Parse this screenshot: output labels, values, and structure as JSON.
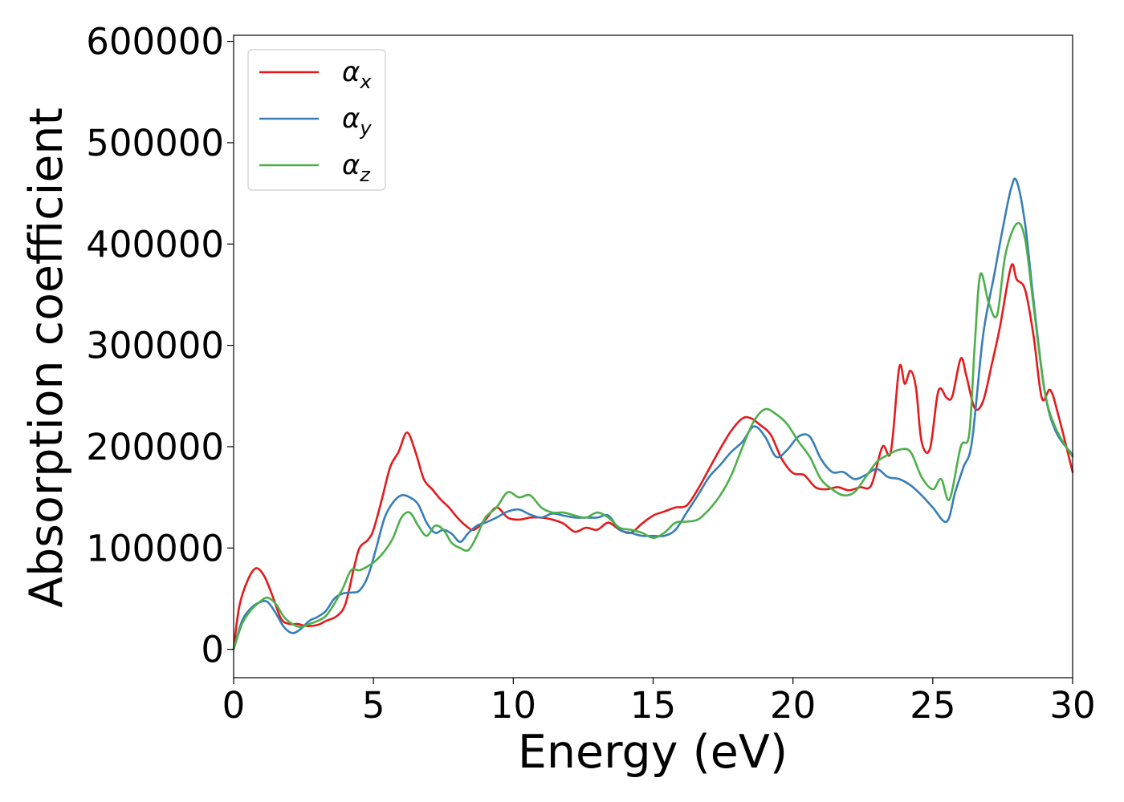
{
  "chart_data": {
    "type": "line",
    "title": "",
    "xlabel": "Energy (eV)",
    "ylabel": "Absorption coefficient",
    "xlim": [
      0,
      30
    ],
    "ylim": [
      -28000,
      606000
    ],
    "xticks": [
      0,
      5,
      10,
      15,
      20,
      25,
      30
    ],
    "yticks": [
      0,
      100000,
      200000,
      300000,
      400000,
      500000,
      600000
    ],
    "grid": false,
    "legend": "upper left",
    "colors": {
      "x": "#e41a1c",
      "y": "#377eb8",
      "z": "#4daf4a"
    },
    "series": [
      {
        "name": "αx",
        "symbol": "α",
        "subscript": "x",
        "color": "#e41a1c",
        "x": [
          0,
          0.2,
          0.5,
          0.8,
          1.1,
          1.4,
          1.7,
          2.0,
          2.3,
          2.6,
          3.0,
          3.3,
          3.7,
          4.0,
          4.3,
          4.5,
          4.8,
          5.0,
          5.3,
          5.6,
          5.9,
          6.2,
          6.5,
          6.8,
          7.1,
          7.4,
          7.7,
          8.0,
          8.3,
          8.6,
          9.0,
          9.4,
          9.8,
          10.2,
          10.6,
          11.0,
          11.4,
          11.8,
          12.2,
          12.6,
          13.0,
          13.4,
          13.8,
          14.2,
          14.6,
          15.0,
          15.4,
          15.8,
          16.2,
          16.6,
          17.0,
          17.4,
          17.8,
          18.2,
          18.5,
          18.8,
          19.2,
          19.6,
          20.0,
          20.4,
          20.8,
          21.2,
          21.6,
          22.0,
          22.4,
          22.8,
          23.2,
          23.5,
          23.8,
          24.0,
          24.2,
          24.4,
          24.6,
          24.9,
          25.2,
          25.5,
          25.7,
          26.0,
          26.2,
          26.5,
          26.8,
          27.1,
          27.4,
          27.8,
          28.0,
          28.3,
          28.6,
          28.9,
          29.2,
          29.5,
          30.0
        ],
        "y": [
          0,
          42000,
          68000,
          80000,
          72000,
          52000,
          30000,
          25000,
          25000,
          23000,
          24000,
          28000,
          33000,
          45000,
          80000,
          100000,
          108000,
          118000,
          148000,
          180000,
          195000,
          214000,
          195000,
          168000,
          158000,
          148000,
          140000,
          130000,
          122000,
          118000,
          128000,
          140000,
          130000,
          128000,
          130000,
          130000,
          128000,
          124000,
          116000,
          120000,
          118000,
          125000,
          118000,
          115000,
          124000,
          132000,
          136000,
          140000,
          142000,
          158000,
          178000,
          198000,
          216000,
          228000,
          228000,
          222000,
          212000,
          188000,
          174000,
          172000,
          160000,
          158000,
          160000,
          157000,
          160000,
          162000,
          200000,
          195000,
          278000,
          262000,
          275000,
          258000,
          205000,
          198000,
          255000,
          248000,
          250000,
          287000,
          270000,
          238000,
          245000,
          280000,
          318000,
          378000,
          365000,
          355000,
          310000,
          248000,
          256000,
          230000,
          175000
        ]
      },
      {
        "name": "αy",
        "symbol": "α",
        "subscript": "y",
        "color": "#377eb8",
        "x": [
          0,
          0.3,
          0.6,
          0.9,
          1.2,
          1.5,
          1.8,
          2.1,
          2.4,
          2.7,
          3.0,
          3.3,
          3.6,
          3.9,
          4.2,
          4.5,
          4.8,
          5.1,
          5.4,
          5.7,
          6.0,
          6.3,
          6.6,
          6.9,
          7.2,
          7.5,
          7.8,
          8.1,
          8.4,
          8.7,
          9.0,
          9.4,
          9.8,
          10.2,
          10.6,
          11.0,
          11.4,
          11.8,
          12.2,
          12.6,
          13.0,
          13.4,
          13.8,
          14.2,
          14.6,
          15.0,
          15.4,
          15.8,
          16.2,
          16.6,
          17.0,
          17.4,
          17.8,
          18.2,
          18.6,
          19.0,
          19.4,
          19.8,
          20.2,
          20.6,
          21.0,
          21.4,
          21.8,
          22.2,
          22.6,
          23.0,
          23.4,
          23.8,
          24.2,
          24.6,
          25.0,
          25.5,
          25.8,
          26.1,
          26.4,
          26.8,
          27.2,
          27.5,
          27.8,
          28.0,
          28.3,
          28.6,
          29.0,
          29.4,
          30.0
        ],
        "y": [
          0,
          28000,
          40000,
          46000,
          47000,
          36000,
          22000,
          16000,
          20000,
          28000,
          32000,
          38000,
          50000,
          55000,
          56000,
          58000,
          72000,
          100000,
          130000,
          145000,
          152000,
          150000,
          143000,
          125000,
          115000,
          118000,
          114000,
          106000,
          115000,
          122000,
          125000,
          130000,
          136000,
          138000,
          133000,
          130000,
          134000,
          132000,
          130000,
          130000,
          130000,
          132000,
          118000,
          115000,
          112000,
          112000,
          112000,
          118000,
          135000,
          152000,
          170000,
          182000,
          195000,
          205000,
          220000,
          210000,
          190000,
          197000,
          210000,
          210000,
          188000,
          175000,
          175000,
          168000,
          172000,
          178000,
          170000,
          168000,
          162000,
          152000,
          140000,
          126000,
          155000,
          180000,
          205000,
          310000,
          370000,
          415000,
          455000,
          462000,
          420000,
          345000,
          255000,
          215000,
          192000
        ]
      },
      {
        "name": "αz",
        "symbol": "α",
        "subscript": "z",
        "color": "#4daf4a",
        "x": [
          0,
          0.3,
          0.6,
          0.9,
          1.2,
          1.5,
          1.8,
          2.1,
          2.4,
          2.7,
          3.0,
          3.3,
          3.6,
          3.9,
          4.2,
          4.5,
          4.8,
          5.1,
          5.4,
          5.7,
          6.0,
          6.3,
          6.6,
          6.9,
          7.2,
          7.5,
          7.8,
          8.1,
          8.4,
          8.7,
          9.0,
          9.4,
          9.8,
          10.2,
          10.6,
          11.0,
          11.4,
          11.8,
          12.2,
          12.6,
          13.0,
          13.4,
          13.8,
          14.2,
          14.6,
          15.0,
          15.4,
          15.8,
          16.2,
          16.6,
          17.0,
          17.4,
          17.8,
          18.2,
          18.6,
          19.0,
          19.4,
          19.8,
          20.2,
          20.6,
          21.0,
          21.4,
          21.8,
          22.2,
          22.6,
          23.0,
          23.4,
          23.8,
          24.2,
          24.6,
          25.0,
          25.3,
          25.6,
          26.0,
          26.3,
          26.5,
          26.7,
          27.0,
          27.3,
          27.6,
          28.0,
          28.3,
          28.6,
          29.0,
          29.4,
          30.0
        ],
        "y": [
          0,
          25000,
          38000,
          46000,
          51000,
          45000,
          32000,
          25000,
          22000,
          25000,
          28000,
          33000,
          45000,
          60000,
          78000,
          78000,
          82000,
          88000,
          97000,
          110000,
          130000,
          135000,
          122000,
          112000,
          122000,
          118000,
          105000,
          100000,
          98000,
          112000,
          130000,
          140000,
          155000,
          150000,
          152000,
          140000,
          135000,
          135000,
          132000,
          130000,
          135000,
          130000,
          120000,
          118000,
          115000,
          110000,
          115000,
          125000,
          126000,
          128000,
          138000,
          152000,
          172000,
          200000,
          225000,
          237000,
          232000,
          222000,
          205000,
          190000,
          168000,
          158000,
          152000,
          155000,
          170000,
          185000,
          192000,
          197000,
          195000,
          170000,
          158000,
          168000,
          148000,
          200000,
          212000,
          300000,
          370000,
          342000,
          330000,
          390000,
          420000,
          405000,
          340000,
          255000,
          218000,
          190000
        ]
      }
    ]
  }
}
